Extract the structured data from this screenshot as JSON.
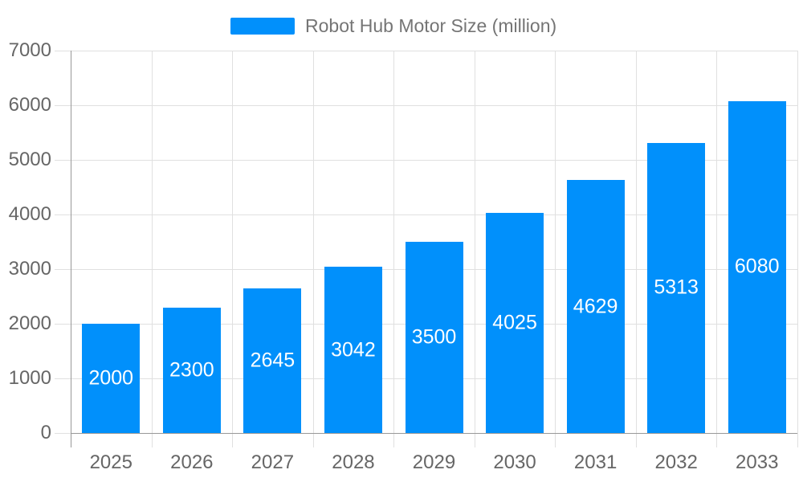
{
  "chart_data": {
    "type": "bar",
    "title": "Robot Hub Motor Size (million)",
    "categories": [
      "2025",
      "2026",
      "2027",
      "2028",
      "2029",
      "2030",
      "2031",
      "2032",
      "2033"
    ],
    "series": [
      {
        "name": "Robot Hub Motor Size (million)",
        "values": [
          2000,
          2300,
          2645,
          3042,
          3500,
          4025,
          4629,
          5313,
          6080
        ]
      }
    ],
    "value_labels": [
      "2000",
      "2300",
      "2645",
      "3042",
      "3500",
      "4025",
      "4629",
      "5313",
      "6080"
    ],
    "xlabel": "",
    "ylabel": "",
    "ylim": [
      0,
      7000
    ],
    "ytick_interval": 1000,
    "ytick_labels": [
      "0",
      "1000",
      "2000",
      "3000",
      "4000",
      "5000",
      "6000",
      "7000"
    ],
    "grid": true,
    "legend_position": "top",
    "colors": {
      "bar": "#0190FB",
      "grid": "#E0E0E0",
      "axis": "#999999",
      "axis_label": "#666666",
      "legend_text": "#757575",
      "value_label": "#FFFFFF",
      "background": "#FFFFFF"
    }
  },
  "legend": {
    "label": "Robot Hub Motor Size (million)"
  }
}
